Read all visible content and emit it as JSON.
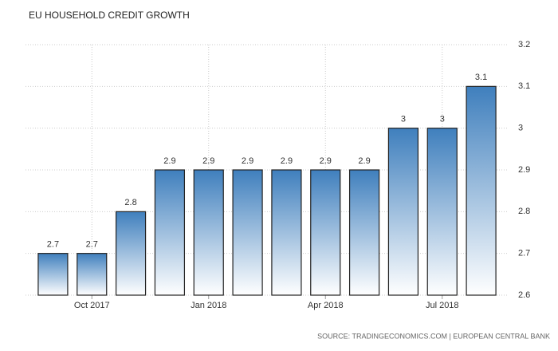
{
  "chart_data": {
    "type": "bar",
    "title": "EU HOUSEHOLD CREDIT GROWTH",
    "source": "SOURCE: TRADINGECONOMICS.COM | EUROPEAN CENTRAL BANK",
    "categories": [
      null,
      "Oct 2017",
      null,
      null,
      "Jan 2018",
      null,
      null,
      "Apr 2018",
      null,
      null,
      "Jul 2018",
      null
    ],
    "values": [
      2.7,
      2.7,
      2.8,
      2.9,
      2.9,
      2.9,
      2.9,
      2.9,
      2.9,
      3,
      3,
      3.1
    ],
    "color": "#3f7fbd",
    "ylim": [
      2.6,
      3.2
    ],
    "yticks": [
      2.6,
      2.7,
      2.8,
      2.9,
      3,
      3.1,
      3.2
    ],
    "grid": true
  }
}
